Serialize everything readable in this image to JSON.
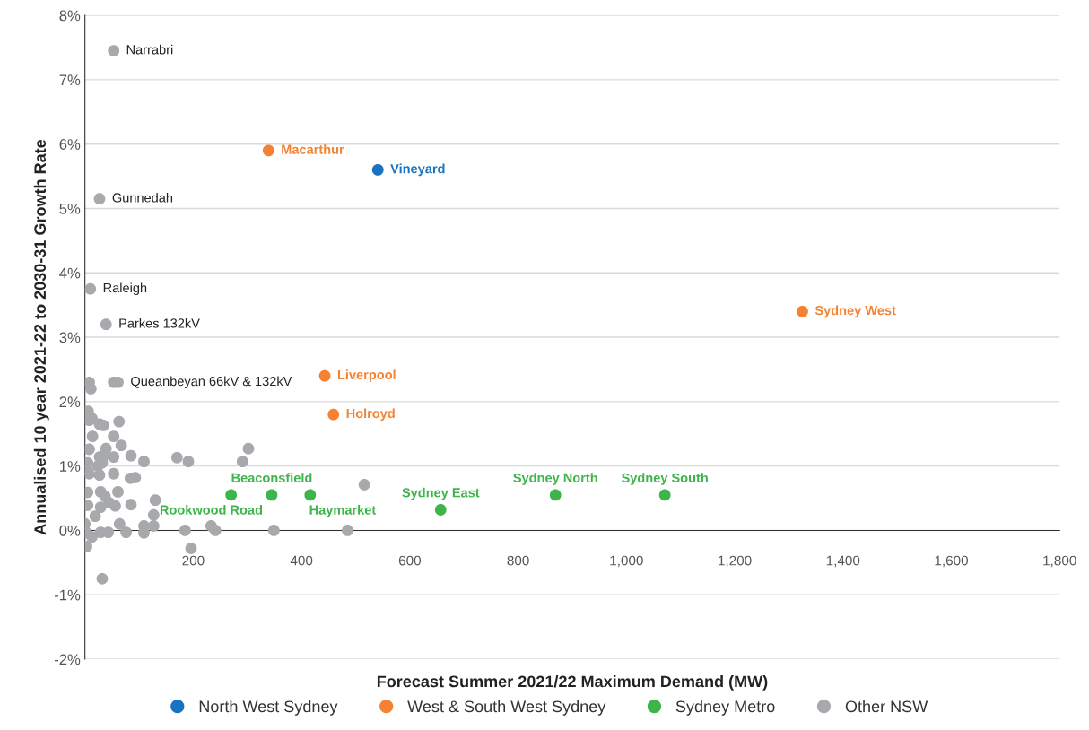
{
  "chart_data": {
    "type": "scatter",
    "xlabel": "Forecast Summer 2021/22 Maximum Demand (MW)",
    "ylabel": "Annualised 10 year 2021-22 to 2030-31 Growth Rate",
    "xlim": [
      0,
      1800
    ],
    "xticks": [
      200,
      400,
      600,
      800,
      {
        "value": 1000,
        "label": "1,000"
      },
      {
        "value": 1200,
        "label": "1,200"
      },
      {
        "value": 1400,
        "label": "1,400"
      },
      {
        "value": 1600,
        "label": "1,600"
      },
      {
        "value": 1800,
        "label": "1,800"
      }
    ],
    "ylim": [
      -2,
      8
    ],
    "yticks": [
      {
        "value": -2,
        "label": "-2%"
      },
      {
        "value": -1,
        "label": "-1%"
      },
      {
        "value": 0,
        "label": "0%"
      },
      {
        "value": 1,
        "label": "1%"
      },
      {
        "value": 2,
        "label": "2%"
      },
      {
        "value": 3,
        "label": "3%"
      },
      {
        "value": 4,
        "label": "4%"
      },
      {
        "value": 5,
        "label": "5%"
      },
      {
        "value": 6,
        "label": "6%"
      },
      {
        "value": 7,
        "label": "7%"
      },
      {
        "value": 8,
        "label": "8%"
      }
    ],
    "grid": "y",
    "legend": "bottom",
    "marker": "circle",
    "series": [
      {
        "name": "North West Sydney",
        "color": "#1a73c1",
        "x": [
          541
        ],
        "values": [
          5.6
        ],
        "value_labels": [
          "Vineyard"
        ]
      },
      {
        "name": "West & South West Sydney",
        "color": "#f58232",
        "x": [
          339,
          1325,
          443,
          459
        ],
        "values": [
          5.9,
          3.4,
          2.4,
          1.8
        ],
        "value_labels": [
          "Macarthur",
          "Sydney West",
          "Liverpool",
          "Holroyd"
        ]
      },
      {
        "name": "Sydney Metro",
        "color": "#3db54a",
        "x": [
          270,
          345,
          416,
          657,
          869,
          1071
        ],
        "values": [
          0.55,
          0.55,
          0.55,
          0.32,
          0.55,
          0.55
        ],
        "value_labels": [
          "Rookwood Road",
          "Beaconsfield",
          "Haymarket",
          "Sydney East",
          "Sydney North",
          "Sydney South"
        ]
      },
      {
        "name": "Other NSW",
        "color": "#a7a9ac",
        "x": [
          53,
          27,
          10,
          39,
          8,
          11,
          53,
          61,
          6,
          8,
          13,
          27,
          34,
          63,
          14,
          53,
          67,
          8,
          39,
          27,
          35,
          53,
          85,
          109,
          170,
          191,
          5,
          5,
          24,
          32,
          8,
          27,
          53,
          84,
          93,
          5,
          29,
          37,
          61,
          45,
          56,
          85,
          130,
          5,
          29,
          19,
          127,
          0,
          2,
          13,
          29,
          43,
          64,
          76,
          109,
          109,
          127,
          185,
          233,
          241,
          3,
          196,
          32,
          291,
          302,
          516,
          349,
          485
        ],
        "values": [
          7.45,
          5.15,
          3.75,
          3.2,
          2.3,
          2.2,
          2.3,
          2.3,
          1.85,
          1.71,
          1.74,
          1.65,
          1.63,
          1.69,
          1.46,
          1.46,
          1.32,
          1.26,
          1.27,
          1.14,
          1.16,
          1.14,
          1.16,
          1.07,
          1.13,
          1.07,
          1.05,
          0.93,
          1.0,
          1.05,
          0.88,
          0.86,
          0.88,
          0.81,
          0.82,
          0.59,
          0.6,
          0.53,
          0.6,
          0.43,
          0.38,
          0.4,
          0.47,
          0.39,
          0.36,
          0.22,
          0.24,
          0.1,
          -0.03,
          -0.1,
          -0.03,
          -0.03,
          0.1,
          -0.03,
          0.07,
          -0.04,
          0.07,
          0.0,
          0.07,
          0.0,
          -0.25,
          -0.28,
          -0.75,
          1.07,
          1.27,
          0.71,
          0.0,
          0.0
        ]
      }
    ],
    "annotations": [
      {
        "text": "Narrabri",
        "x": 53,
        "y": 7.45
      },
      {
        "text": "Gunnedah",
        "x": 27,
        "y": 5.15
      },
      {
        "text": "Raleigh",
        "x": 10,
        "y": 3.75
      },
      {
        "text": "Parkes 132kV",
        "x": 39,
        "y": 3.2
      },
      {
        "text": "Queanbeyan 66kV & 132kV",
        "x": 61,
        "y": 2.3
      }
    ]
  }
}
